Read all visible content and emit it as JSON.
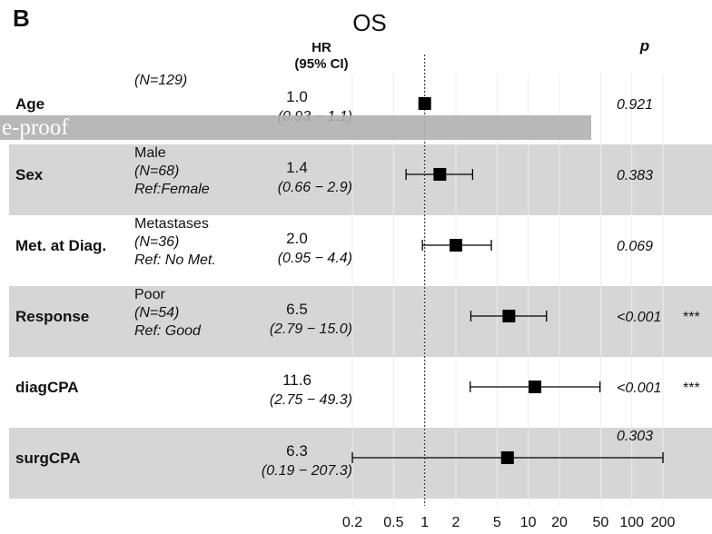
{
  "panel_letter": "B",
  "watermark": "e-proof",
  "chart_data": {
    "type": "forest",
    "title": "OS",
    "hr_header": [
      "HR",
      "(95% CI)"
    ],
    "p_header": "p",
    "x_scale": "log",
    "xlim": [
      0.2,
      200
    ],
    "reference_line": 1,
    "x_ticks": [
      "0.2",
      "0.5",
      "1",
      "2",
      "5",
      "10",
      "20",
      "50",
      "100",
      "200"
    ],
    "x_tick_values": [
      0.2,
      0.5,
      1,
      2,
      5,
      10,
      20,
      50,
      100,
      200
    ],
    "rows": [
      {
        "variable": "Age",
        "group_lines": [
          "(N=129)"
        ],
        "hr_label": "1.0",
        "ci_label": "(0.93 −   1.1)",
        "hr": 1.0,
        "ci": [
          0.93,
          1.1
        ],
        "p": "0.921",
        "stars": "",
        "shaded": false
      },
      {
        "variable": "Sex",
        "group_lines": [
          "Male",
          "(N=68)",
          "Ref:Female"
        ],
        "hr_label": "1.4",
        "ci_label": "(0.66 −   2.9)",
        "hr": 1.4,
        "ci": [
          0.66,
          2.9
        ],
        "p": "0.383",
        "stars": "",
        "shaded": true
      },
      {
        "variable": "Met. at Diag.",
        "group_lines": [
          "Metastases",
          "(N=36)",
          "Ref: No Met."
        ],
        "hr_label": "2.0",
        "ci_label": "(0.95 −   4.4)",
        "hr": 2.0,
        "ci": [
          0.95,
          4.4
        ],
        "p": "0.069",
        "stars": "",
        "shaded": false
      },
      {
        "variable": "Response",
        "group_lines": [
          "Poor",
          "(N=54)",
          "Ref: Good"
        ],
        "hr_label": "6.5",
        "ci_label": "(2.79 −  15.0)",
        "hr": 6.5,
        "ci": [
          2.79,
          15.0
        ],
        "p": "<0.001",
        "stars": "***",
        "shaded": true
      },
      {
        "variable": "diagCPA",
        "group_lines": [],
        "hr_label": "11.6",
        "ci_label": "(2.75 −  49.3)",
        "hr": 11.6,
        "ci": [
          2.75,
          49.3
        ],
        "p": "<0.001",
        "stars": "***",
        "shaded": false
      },
      {
        "variable": "surgCPA",
        "group_lines": [],
        "hr_label": "6.3",
        "ci_label": "(0.19 − 207.3)",
        "hr": 6.3,
        "ci": [
          0.19,
          207.3
        ],
        "p": "0.303",
        "stars": "",
        "shaded": true
      }
    ]
  }
}
